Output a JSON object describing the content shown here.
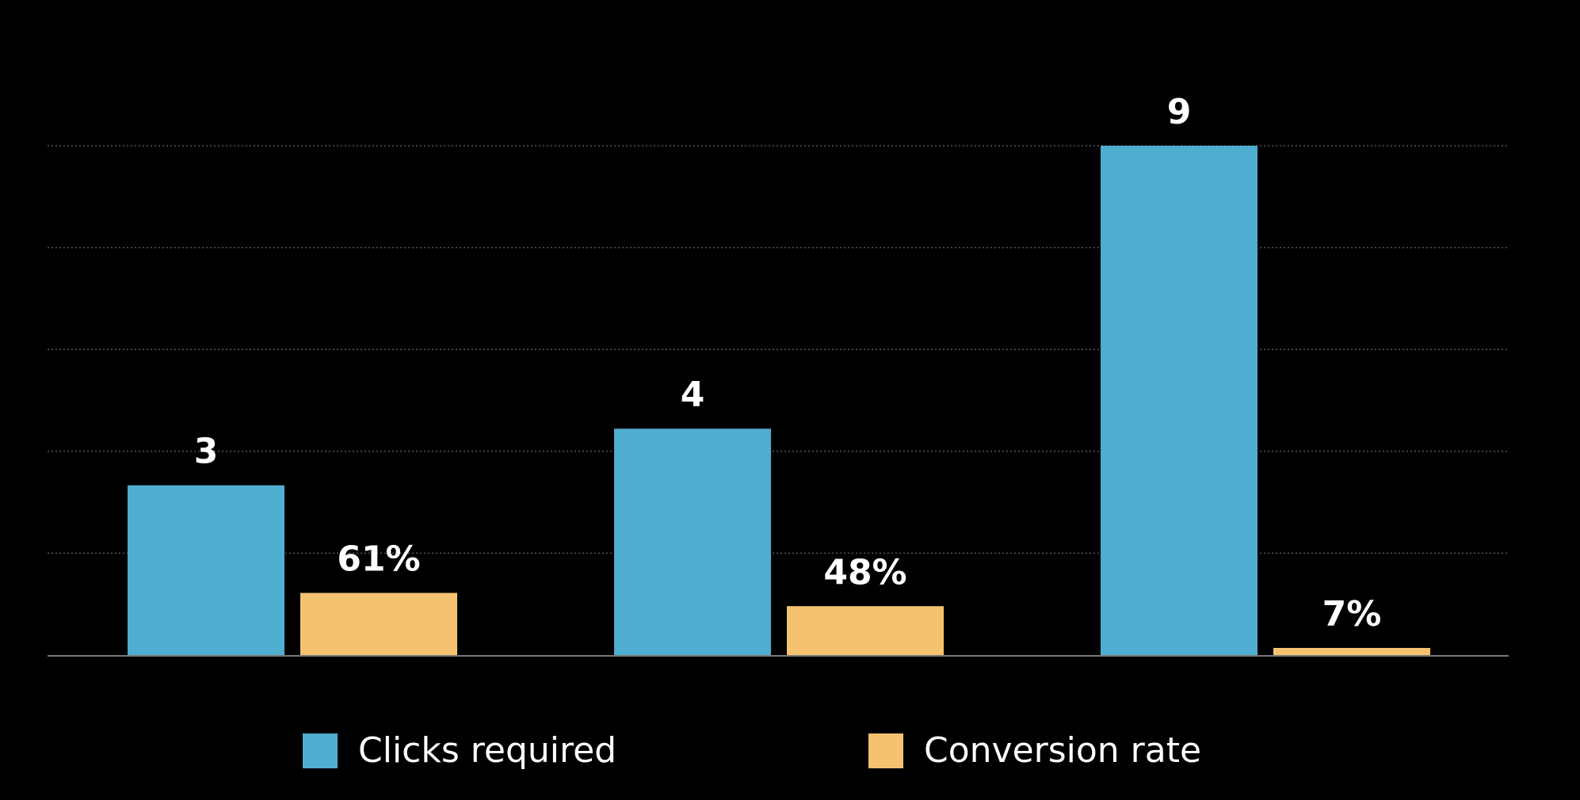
{
  "chart_data": {
    "type": "bar",
    "categories": [
      "",
      "",
      ""
    ],
    "series": [
      {
        "name": "Clicks required",
        "values": [
          3,
          4,
          9
        ],
        "labels": [
          "3",
          "4",
          "9"
        ],
        "color": "#4fadcf",
        "ylim": [
          0,
          9
        ]
      },
      {
        "name": "Conversion rate",
        "values": [
          61,
          48,
          7
        ],
        "labels": [
          "61%",
          "48%",
          "7%"
        ],
        "color": "#f5c36f",
        "ylim": [
          0,
          500
        ]
      }
    ],
    "title": "",
    "xlabel": "",
    "ylabel": "",
    "grid": true,
    "grid_color": "#555555",
    "axis_color": "#777777",
    "legend": "bottom",
    "background": "#000000"
  }
}
